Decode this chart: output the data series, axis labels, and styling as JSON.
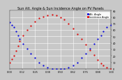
{
  "title": "Sun Alt. Angle & Sun Incidence Angle on PV Panels",
  "legend_blue": "Alt. Angle",
  "legend_red": "Incidence Angle",
  "background_color": "#c8c8c8",
  "plot_bg": "#c8c8c8",
  "grid_color": "#ffffff",
  "blue_color": "#0000dd",
  "red_color": "#dd0000",
  "ylim": [
    0,
    90
  ],
  "xlim": [
    0,
    1
  ],
  "ylabel_right_ticks": [
    0,
    10,
    20,
    30,
    40,
    50,
    60,
    70,
    80,
    90
  ],
  "blue_x": [
    0.0,
    0.02,
    0.04,
    0.06,
    0.08,
    0.1,
    0.13,
    0.17,
    0.21,
    0.25,
    0.29,
    0.33,
    0.37,
    0.42,
    0.46,
    0.5,
    0.54,
    0.58,
    0.63,
    0.67,
    0.71,
    0.75,
    0.79,
    0.83,
    0.87,
    0.9,
    0.92,
    0.96,
    1.0
  ],
  "blue_y": [
    72,
    68,
    64,
    58,
    52,
    46,
    39,
    31,
    24,
    17,
    10,
    5,
    2,
    0,
    0,
    0,
    0,
    2,
    5,
    10,
    17,
    24,
    31,
    39,
    46,
    52,
    58,
    64,
    68
  ],
  "red_x": [
    0.0,
    0.02,
    0.04,
    0.06,
    0.08,
    0.1,
    0.13,
    0.17,
    0.21,
    0.25,
    0.29,
    0.33,
    0.37,
    0.42,
    0.46,
    0.5,
    0.54,
    0.58,
    0.63,
    0.67,
    0.71,
    0.75,
    0.79,
    0.83,
    0.87,
    0.9,
    0.92,
    0.96,
    1.0
  ],
  "red_y": [
    10,
    15,
    20,
    28,
    35,
    43,
    52,
    60,
    67,
    73,
    78,
    81,
    83,
    84,
    83,
    80,
    76,
    70,
    62,
    54,
    46,
    38,
    29,
    21,
    14,
    8,
    5,
    2,
    0
  ],
  "num_xticks": 9,
  "title_fontsize": 3.5,
  "tick_fontsize": 2.5,
  "legend_fontsize": 2.5,
  "markersize": 1.2
}
